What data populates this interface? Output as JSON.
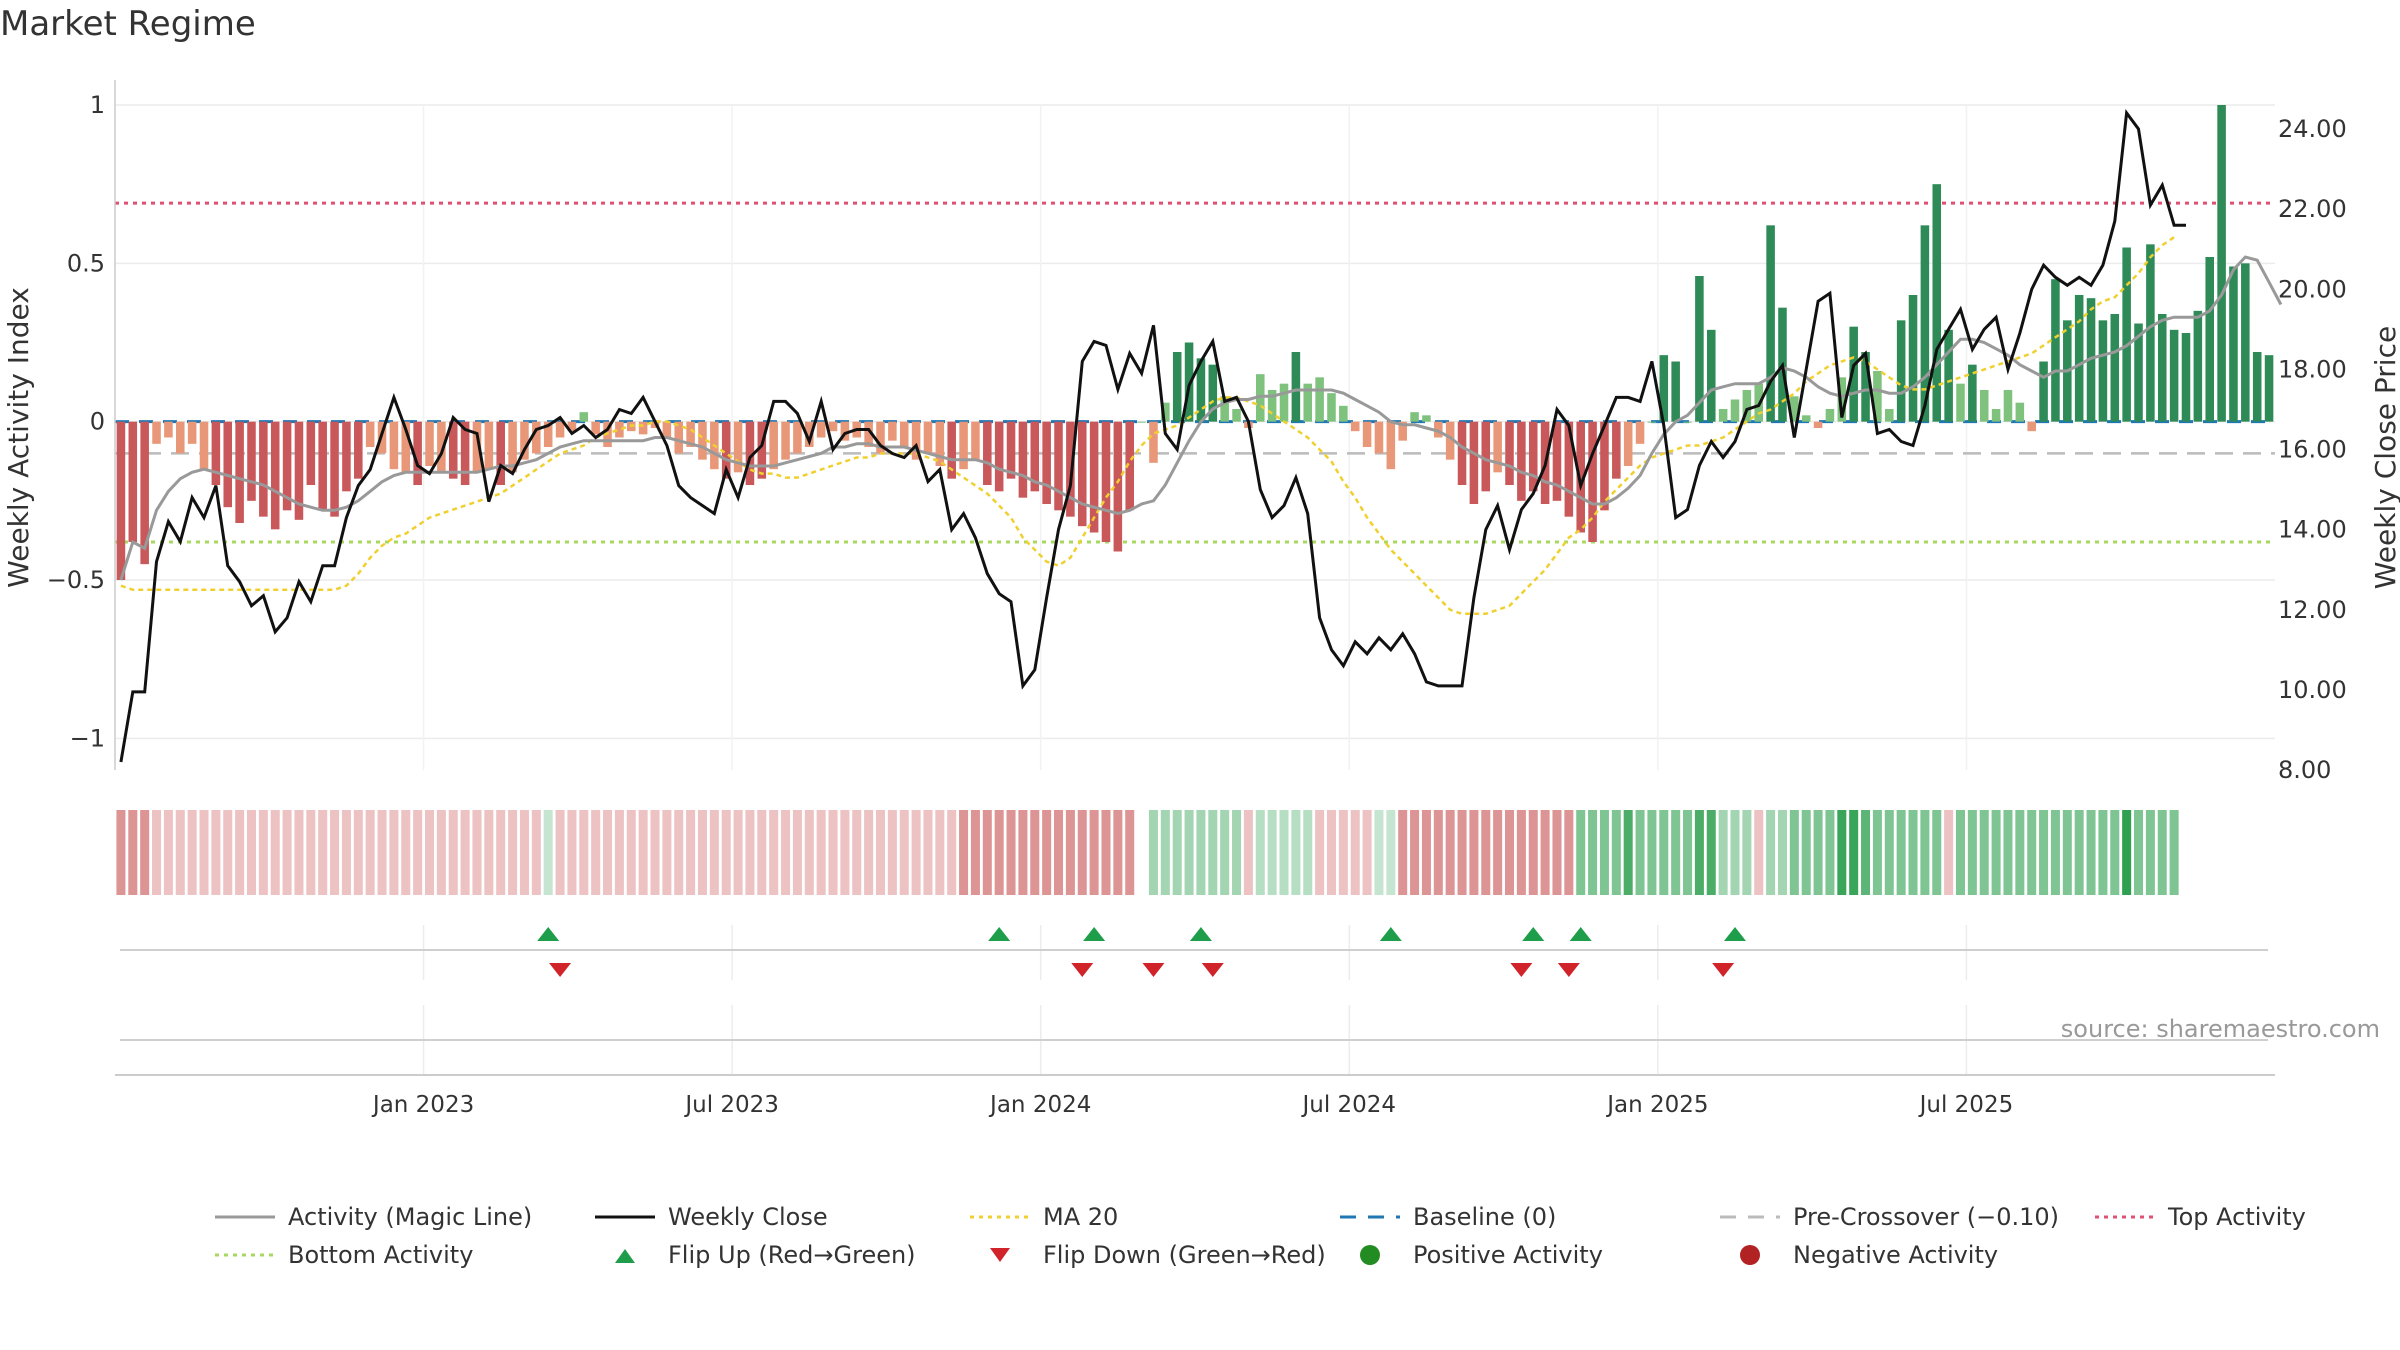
{
  "title": "Market Regime",
  "source": "source: sharemaestro.com",
  "chart_data": {
    "type": "bar",
    "ylabel_left": "Weekly Activity Index",
    "ylabel_right": "Weekly Close Price",
    "ylim_left": [
      -1.1,
      1.0
    ],
    "ylim_right": [
      8.0,
      24.6
    ],
    "yticks_left": [
      {
        "v": 1,
        "label": "1"
      },
      {
        "v": 0.5,
        "label": "0.5"
      },
      {
        "v": 0,
        "label": "0"
      },
      {
        "v": -0.5,
        "label": "−0.5"
      },
      {
        "v": -1,
        "label": "−1"
      }
    ],
    "yticks_right": [
      "8.00",
      "10.00",
      "12.00",
      "14.00",
      "16.00",
      "18.00",
      "20.00",
      "22.00",
      "24.00"
    ],
    "xticks": [
      {
        "week": 26,
        "label": "Jan 2023"
      },
      {
        "week": 52,
        "label": "Jul 2023"
      },
      {
        "week": 78,
        "label": "Jan 2024"
      },
      {
        "week": 104,
        "label": "Jul 2024"
      },
      {
        "week": 130,
        "label": "Jan 2025"
      },
      {
        "week": 156,
        "label": "Jul 2025"
      }
    ],
    "x_start": "2022-07-04",
    "top_activity": 0.69,
    "bottom_activity": -0.38,
    "baseline": 0,
    "pre_crossover": -0.1,
    "colors": {
      "pos_strong": "#2e8b57",
      "pos_light": "#7ec27e",
      "neg_strong": "#c8585a",
      "neg_light": "#e89878",
      "magic_line": "#999999",
      "close": "#111111",
      "ma20": "#f0d030",
      "baseline": "#1f77b4",
      "pre_crossover": "#bbbbbb",
      "top": "#e05070",
      "bottom": "#a8d860",
      "flip_up": "#1e9e4a",
      "flip_down": "#d0242a"
    },
    "activity": [
      -0.5,
      -0.38,
      -0.45,
      -0.07,
      -0.05,
      -0.1,
      -0.07,
      -0.15,
      -0.2,
      -0.27,
      -0.32,
      -0.25,
      -0.3,
      -0.34,
      -0.28,
      -0.31,
      -0.2,
      -0.28,
      -0.3,
      -0.22,
      -0.18,
      -0.08,
      -0.1,
      -0.15,
      -0.16,
      -0.2,
      -0.14,
      -0.16,
      -0.18,
      -0.2,
      -0.16,
      -0.15,
      -0.2,
      -0.16,
      -0.12,
      -0.1,
      -0.08,
      -0.05,
      -0.03,
      0.03,
      -0.04,
      -0.08,
      -0.05,
      -0.03,
      -0.04,
      -0.02,
      -0.05,
      -0.1,
      -0.08,
      -0.12,
      -0.15,
      -0.18,
      -0.16,
      -0.2,
      -0.18,
      -0.15,
      -0.12,
      -0.1,
      -0.08,
      -0.05,
      -0.03,
      -0.06,
      -0.05,
      -0.08,
      -0.1,
      -0.06,
      -0.08,
      -0.12,
      -0.1,
      -0.14,
      -0.18,
      -0.15,
      -0.12,
      -0.2,
      -0.22,
      -0.18,
      -0.24,
      -0.22,
      -0.26,
      -0.28,
      -0.3,
      -0.33,
      -0.35,
      -0.38,
      -0.41,
      -0.28,
      0.0,
      -0.13,
      0.06,
      0.22,
      0.25,
      0.2,
      0.18,
      0.08,
      0.04,
      -0.02,
      0.15,
      0.1,
      0.12,
      0.22,
      0.12,
      0.14,
      0.09,
      0.05,
      -0.03,
      -0.08,
      -0.1,
      -0.15,
      -0.06,
      0.03,
      0.02,
      -0.05,
      -0.12,
      -0.2,
      -0.26,
      -0.22,
      -0.16,
      -0.2,
      -0.25,
      -0.22,
      -0.26,
      -0.25,
      -0.3,
      -0.35,
      -0.38,
      -0.28,
      -0.18,
      -0.14,
      -0.07,
      0.0,
      0.21,
      0.19,
      0.0,
      0.46,
      0.29,
      0.04,
      0.07,
      0.1,
      0.12,
      0.62,
      0.36,
      0.08,
      0.02,
      -0.02,
      0.04,
      0.14,
      0.3,
      0.22,
      0.16,
      0.04,
      0.32,
      0.4,
      0.62,
      0.75,
      0.29,
      0.12,
      0.18,
      0.1,
      0.04,
      0.1,
      0.06,
      -0.03,
      0.19,
      0.45,
      0.32,
      0.4,
      0.39,
      0.32,
      0.34,
      0.55,
      0.31,
      0.56,
      0.34,
      0.29,
      0.28,
      0.35,
      0.52,
      1.0,
      0.49,
      0.5,
      0.22,
      0.21
    ],
    "magic_line": [
      -0.5,
      -0.38,
      -0.4,
      -0.28,
      -0.22,
      -0.18,
      -0.16,
      -0.15,
      -0.16,
      -0.17,
      -0.18,
      -0.19,
      -0.2,
      -0.22,
      -0.24,
      -0.26,
      -0.27,
      -0.28,
      -0.28,
      -0.27,
      -0.25,
      -0.22,
      -0.19,
      -0.17,
      -0.16,
      -0.16,
      -0.16,
      -0.16,
      -0.16,
      -0.16,
      -0.16,
      -0.15,
      -0.14,
      -0.14,
      -0.13,
      -0.12,
      -0.1,
      -0.08,
      -0.07,
      -0.06,
      -0.06,
      -0.06,
      -0.06,
      -0.06,
      -0.06,
      -0.05,
      -0.05,
      -0.06,
      -0.07,
      -0.08,
      -0.1,
      -0.12,
      -0.13,
      -0.14,
      -0.14,
      -0.14,
      -0.13,
      -0.12,
      -0.11,
      -0.1,
      -0.08,
      -0.08,
      -0.07,
      -0.07,
      -0.08,
      -0.08,
      -0.08,
      -0.09,
      -0.1,
      -0.11,
      -0.12,
      -0.12,
      -0.12,
      -0.13,
      -0.15,
      -0.16,
      -0.17,
      -0.19,
      -0.2,
      -0.22,
      -0.24,
      -0.26,
      -0.27,
      -0.28,
      -0.29,
      -0.28,
      -0.26,
      -0.25,
      -0.2,
      -0.13,
      -0.06,
      0.0,
      0.04,
      0.06,
      0.07,
      0.07,
      0.08,
      0.08,
      0.09,
      0.1,
      0.1,
      0.1,
      0.1,
      0.09,
      0.07,
      0.05,
      0.03,
      0.0,
      -0.01,
      -0.01,
      -0.02,
      -0.03,
      -0.05,
      -0.08,
      -0.1,
      -0.12,
      -0.13,
      -0.14,
      -0.16,
      -0.17,
      -0.19,
      -0.2,
      -0.22,
      -0.24,
      -0.26,
      -0.26,
      -0.24,
      -0.21,
      -0.17,
      -0.1,
      -0.04,
      0.0,
      0.02,
      0.06,
      0.1,
      0.11,
      0.12,
      0.12,
      0.12,
      0.14,
      0.17,
      0.16,
      0.14,
      0.11,
      0.09,
      0.08,
      0.09,
      0.1,
      0.1,
      0.09,
      0.09,
      0.11,
      0.14,
      0.18,
      0.22,
      0.26,
      0.26,
      0.25,
      0.23,
      0.21,
      0.18,
      0.16,
      0.14,
      0.16,
      0.16,
      0.18,
      0.2,
      0.21,
      0.22,
      0.24,
      0.27,
      0.3,
      0.32,
      0.33,
      0.33,
      0.33,
      0.35,
      0.4,
      0.48,
      0.52,
      0.51,
      0.44,
      0.37
    ],
    "weekly_close": [
      8.2,
      9.95,
      9.95,
      13.2,
      14.2,
      13.7,
      14.8,
      14.3,
      15.1,
      13.1,
      12.7,
      12.1,
      12.35,
      11.45,
      11.8,
      12.7,
      12.2,
      13.1,
      13.1,
      14.3,
      15.1,
      15.5,
      16.4,
      17.3,
      16.5,
      15.6,
      15.4,
      15.9,
      16.8,
      16.5,
      16.4,
      14.7,
      15.6,
      15.4,
      16.0,
      16.5,
      16.6,
      16.8,
      16.4,
      16.6,
      16.3,
      16.5,
      17.0,
      16.9,
      17.3,
      16.7,
      16.1,
      15.1,
      14.8,
      14.6,
      14.4,
      15.5,
      14.8,
      15.8,
      16.1,
      17.2,
      17.2,
      16.9,
      16.2,
      17.2,
      16.0,
      16.4,
      16.5,
      16.5,
      16.1,
      15.9,
      15.8,
      16.1,
      15.2,
      15.5,
      14.0,
      14.4,
      13.8,
      12.9,
      12.4,
      12.2,
      10.1,
      10.5,
      12.3,
      14.0,
      15.1,
      18.2,
      18.7,
      18.6,
      17.5,
      18.4,
      17.9,
      19.1,
      16.4,
      16.0,
      17.6,
      18.2,
      18.7,
      17.2,
      17.3,
      16.7,
      15.0,
      14.3,
      14.6,
      15.3,
      14.4,
      11.8,
      11.0,
      10.6,
      11.2,
      10.9,
      11.3,
      11.0,
      11.4,
      10.9,
      10.2,
      10.1,
      10.1,
      10.1,
      12.3,
      14.0,
      14.6,
      13.5,
      14.5,
      14.9,
      15.6,
      17.0,
      16.6,
      15.1,
      15.9,
      16.6,
      17.3,
      17.3,
      17.2,
      18.2,
      16.6,
      14.3,
      14.5,
      15.6,
      16.2,
      15.8,
      16.2,
      17.0,
      17.1,
      17.7,
      18.1,
      16.3,
      18.0,
      19.7,
      19.9,
      16.8,
      18.1,
      18.4,
      16.4,
      16.5,
      16.2,
      16.1,
      17.1,
      18.5,
      19.0,
      19.5,
      18.5,
      19.0,
      19.3,
      18.0,
      18.9,
      20.0,
      20.6,
      20.3,
      20.1,
      20.3,
      20.1,
      20.6,
      21.7,
      24.4,
      24.0,
      22.1,
      22.6,
      21.6,
      21.6
    ],
    "ma20": [
      12.6,
      12.5,
      12.5,
      12.5,
      12.5,
      12.5,
      12.5,
      12.5,
      12.5,
      12.5,
      12.5,
      12.5,
      12.5,
      12.5,
      12.5,
      12.5,
      12.5,
      12.5,
      12.5,
      12.6,
      12.9,
      13.3,
      13.6,
      13.8,
      13.9,
      14.1,
      14.3,
      14.4,
      14.5,
      14.6,
      14.7,
      14.8,
      14.9,
      15.1,
      15.3,
      15.5,
      15.7,
      15.9,
      16.0,
      16.1,
      16.3,
      16.4,
      16.5,
      16.6,
      16.6,
      16.7,
      16.7,
      16.6,
      16.5,
      16.3,
      16.1,
      15.9,
      15.7,
      15.5,
      15.4,
      15.4,
      15.3,
      15.3,
      15.4,
      15.5,
      15.6,
      15.7,
      15.8,
      15.8,
      15.9,
      15.9,
      15.9,
      15.9,
      15.8,
      15.7,
      15.5,
      15.3,
      15.1,
      14.9,
      14.6,
      14.3,
      13.8,
      13.5,
      13.2,
      13.1,
      13.3,
      13.8,
      14.3,
      14.8,
      15.2,
      15.7,
      16.1,
      16.4,
      16.5,
      16.6,
      16.8,
      17.0,
      17.2,
      17.3,
      17.3,
      17.2,
      17.1,
      16.9,
      16.7,
      16.5,
      16.3,
      16.0,
      15.7,
      15.2,
      14.8,
      14.3,
      13.9,
      13.5,
      13.2,
      12.9,
      12.6,
      12.3,
      12.0,
      11.9,
      11.9,
      11.9,
      12.0,
      12.1,
      12.4,
      12.7,
      13.0,
      13.4,
      13.8,
      14.0,
      14.3,
      14.7,
      15.0,
      15.3,
      15.6,
      15.8,
      15.9,
      16.0,
      16.1,
      16.1,
      16.2,
      16.3,
      16.5,
      16.7,
      16.9,
      17.0,
      17.2,
      17.4,
      17.7,
      17.9,
      18.1,
      18.2,
      18.3,
      18.2,
      18.0,
      17.8,
      17.6,
      17.5,
      17.5,
      17.6,
      17.7,
      17.8,
      17.9,
      18.0,
      18.1,
      18.2,
      18.3,
      18.4,
      18.6,
      18.8,
      19.0,
      19.2,
      19.5,
      19.7,
      19.8,
      20.1,
      20.4,
      20.8,
      21.1,
      21.3
    ],
    "regime": [
      -0.6,
      -0.6,
      -0.6,
      -0.3,
      -0.3,
      -0.3,
      -0.3,
      -0.3,
      -0.3,
      -0.3,
      -0.3,
      -0.3,
      -0.3,
      -0.3,
      -0.3,
      -0.3,
      -0.3,
      -0.3,
      -0.3,
      -0.3,
      -0.3,
      -0.3,
      -0.3,
      -0.3,
      -0.3,
      -0.3,
      -0.3,
      -0.3,
      -0.3,
      -0.3,
      -0.3,
      -0.3,
      -0.3,
      -0.3,
      -0.3,
      -0.3,
      0.2,
      -0.3,
      -0.3,
      -0.3,
      -0.3,
      -0.3,
      -0.3,
      -0.3,
      -0.3,
      -0.3,
      -0.3,
      -0.3,
      -0.3,
      -0.3,
      -0.3,
      -0.3,
      -0.3,
      -0.3,
      -0.3,
      -0.3,
      -0.3,
      -0.3,
      -0.3,
      -0.3,
      -0.3,
      -0.3,
      -0.3,
      -0.3,
      -0.3,
      -0.3,
      -0.3,
      -0.3,
      -0.3,
      -0.3,
      -0.3,
      -0.6,
      -0.6,
      -0.6,
      -0.6,
      -0.6,
      -0.6,
      -0.6,
      -0.6,
      -0.6,
      -0.6,
      -0.6,
      -0.6,
      -0.6,
      -0.6,
      -0.6,
      null,
      0.4,
      0.4,
      0.4,
      0.4,
      0.4,
      0.4,
      0.4,
      0.4,
      -0.3,
      0.3,
      0.3,
      0.3,
      0.3,
      0.3,
      -0.3,
      -0.3,
      -0.3,
      -0.3,
      -0.3,
      0.2,
      0.2,
      -0.6,
      -0.6,
      -0.6,
      -0.6,
      -0.6,
      -0.6,
      -0.6,
      -0.6,
      -0.6,
      -0.6,
      -0.6,
      -0.6,
      -0.6,
      -0.6,
      -0.6,
      0.6,
      0.6,
      0.6,
      0.6,
      0.9,
      0.6,
      0.6,
      0.6,
      0.6,
      0.6,
      0.9,
      0.9,
      0.4,
      0.4,
      0.4,
      -0.3,
      0.4,
      0.4,
      0.6,
      0.6,
      0.6,
      0.6,
      1.0,
      1.0,
      0.8,
      0.6,
      0.6,
      0.6,
      0.6,
      0.6,
      0.6,
      -0.3,
      0.6,
      0.6,
      0.6,
      0.6,
      0.6,
      0.6,
      0.6,
      0.6,
      0.6,
      0.6,
      0.6,
      0.6,
      0.6,
      0.6,
      1.2,
      0.6,
      0.6,
      0.6,
      0.6
    ],
    "flip_up_weeks": [
      36,
      74,
      82,
      91,
      107,
      119,
      123,
      136
    ],
    "flip_down_weeks": [
      37,
      81,
      87,
      92,
      118,
      122,
      135
    ]
  },
  "legend": [
    {
      "key": "magic_line",
      "label": "Activity (Magic Line)",
      "symbol": "line",
      "color": "#999999"
    },
    {
      "key": "close",
      "label": "Weekly Close",
      "symbol": "line",
      "color": "#111111"
    },
    {
      "key": "ma20",
      "label": "MA 20",
      "symbol": "dotted",
      "color": "#f0d030"
    },
    {
      "key": "baseline",
      "label": "Baseline (0)",
      "symbol": "dashed",
      "color": "#1f77b4"
    },
    {
      "key": "pre",
      "label": "Pre-Crossover (−0.10)",
      "symbol": "dashed",
      "color": "#bbbbbb"
    },
    {
      "key": "top",
      "label": "Top Activity",
      "symbol": "dotted",
      "color": "#e05070"
    },
    {
      "key": "bottom",
      "label": "Bottom Activity",
      "symbol": "dotted",
      "color": "#a8d860"
    },
    {
      "key": "flip_up",
      "label": "Flip Up (Red→Green)",
      "symbol": "tri-up",
      "color": "#1e9e4a"
    },
    {
      "key": "flip_down",
      "label": "Flip Down (Green→Red)",
      "symbol": "tri-down",
      "color": "#d0242a"
    },
    {
      "key": "pos",
      "label": "Positive Activity",
      "symbol": "circle",
      "color": "#228b22"
    },
    {
      "key": "neg",
      "label": "Negative Activity",
      "symbol": "circle",
      "color": "#b22222"
    }
  ]
}
